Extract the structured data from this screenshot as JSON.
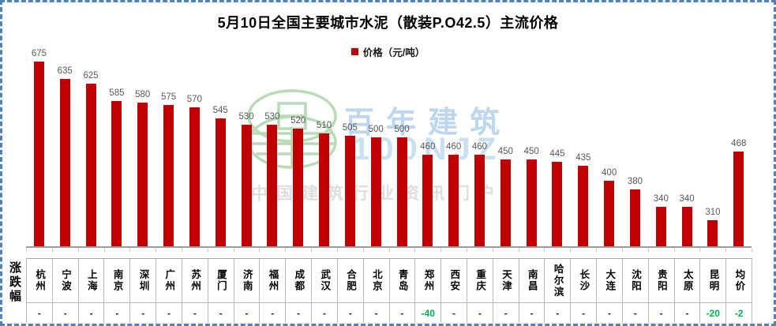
{
  "header": {
    "title": "5月10日全国主要城市水泥（散装P.O42.5）主流价格",
    "legend_label": "价格（元/吨）"
  },
  "watermark": {
    "brand": "百年建筑",
    "code": "100NJZ",
    "tagline": "中国建筑行业资讯门户"
  },
  "table": {
    "row_header": "涨跌幅"
  },
  "colors": {
    "bar": "#c00000",
    "negative_change": "#00b050",
    "frame_border": "#4f81bd",
    "value_label": "#595959",
    "watermark_blue": "#bdd7ee",
    "watermark_green": "#b5dcb5",
    "watermark_gray": "#dedede"
  },
  "chart_data": {
    "type": "bar",
    "title": "5月10日全国主要城市水泥（散装P.O42.5）主流价格",
    "legend": [
      "价格（元/吨）"
    ],
    "legend_position": "top",
    "unit": "元/吨",
    "grid": false,
    "ylim": [
      250,
      700
    ],
    "categories": [
      "杭州",
      "宁波",
      "上海",
      "南京",
      "深圳",
      "广州",
      "苏州",
      "厦门",
      "济南",
      "福州",
      "成都",
      "武汉",
      "合肥",
      "北京",
      "青岛",
      "郑州",
      "西安",
      "重庆",
      "天津",
      "南昌",
      "哈尔滨",
      "长沙",
      "大连",
      "沈阳",
      "贵阳",
      "太原",
      "昆明",
      "均价"
    ],
    "values": [
      675,
      635,
      625,
      585,
      580,
      575,
      570,
      545,
      530,
      530,
      520,
      510,
      505,
      500,
      500,
      460,
      460,
      460,
      450,
      450,
      445,
      435,
      400,
      380,
      340,
      340,
      310,
      468
    ],
    "changes": [
      "-",
      "-",
      "-",
      "-",
      "-",
      "-",
      "-",
      "-",
      "-",
      "-",
      "-",
      "-",
      "-",
      "-",
      "-",
      "-40",
      "-",
      "-",
      "-",
      "-",
      "-",
      "-",
      "-",
      "-",
      "-",
      "-",
      "-20",
      "-2"
    ]
  }
}
